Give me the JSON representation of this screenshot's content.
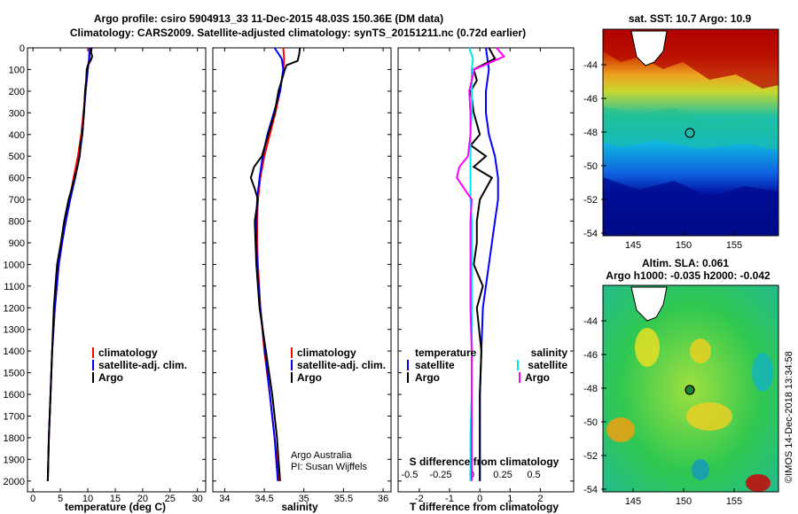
{
  "header": {
    "line1": "Argo profile: csiro 5904913_33 11-Dec-2015 48.03S 150.36E (DM data)",
    "line2": "Climatology: CARS2009. Satellite-adjusted climatology: synTS_20151211.nc (0.72d earlier)"
  },
  "colors": {
    "climatology": "#ff0000",
    "satellite": "#0000ff",
    "argo": "#000000",
    "sat_salinity": "#00e5ee",
    "argo_salinity": "#ff00ff"
  },
  "chart_data": [
    {
      "type": "line",
      "panel": "temperature",
      "xlabel": "temperature (deg C)",
      "ylabel": "",
      "xlim": [
        -1,
        31.5
      ],
      "ylim": [
        0,
        2050
      ],
      "xticks": [
        "0",
        "5",
        "10",
        "15",
        "20",
        "25",
        "30"
      ],
      "yticks": [
        "0",
        "100",
        "200",
        "300",
        "400",
        "500",
        "600",
        "700",
        "800",
        "900",
        "1000",
        "1100",
        "1200",
        "1300",
        "1400",
        "1500",
        "1600",
        "1700",
        "1800",
        "1900",
        "2000"
      ],
      "legend": [
        "climatology",
        "satellite-adj. clim.",
        "Argo"
      ],
      "series": [
        {
          "name": "climatology",
          "depth": [
            0,
            50,
            100,
            200,
            300,
            400,
            500,
            600,
            700,
            800,
            900,
            1000,
            1200,
            1400,
            1600,
            1800,
            2000
          ],
          "values": [
            10.3,
            10.2,
            10.0,
            9.6,
            9.2,
            8.8,
            8.2,
            7.4,
            6.7,
            5.9,
            5.3,
            4.7,
            4.0,
            3.5,
            3.2,
            2.9,
            2.7
          ]
        },
        {
          "name": "satellite-adj. clim.",
          "depth": [
            0,
            50,
            100,
            200,
            300,
            400,
            500,
            600,
            700,
            800,
            900,
            1000,
            1200,
            1400,
            1600,
            1800,
            2000
          ],
          "values": [
            10.4,
            10.3,
            10.0,
            9.6,
            9.3,
            9.0,
            8.5,
            7.7,
            6.8,
            6.0,
            5.3,
            4.7,
            4.0,
            3.5,
            3.2,
            2.9,
            2.7
          ]
        },
        {
          "name": "Argo",
          "depth": [
            0,
            20,
            40,
            60,
            80,
            100,
            150,
            200,
            300,
            400,
            450,
            500,
            550,
            600,
            700,
            800,
            900,
            1000,
            1100,
            1200,
            1400,
            1600,
            1800,
            2000
          ],
          "values": [
            10.7,
            10.6,
            10.8,
            10.5,
            10.0,
            9.8,
            9.7,
            9.5,
            9.3,
            9.0,
            8.6,
            8.5,
            8.1,
            7.6,
            6.5,
            5.7,
            5.1,
            4.4,
            4.1,
            3.8,
            3.5,
            3.2,
            2.9,
            2.7
          ]
        }
      ]
    },
    {
      "type": "line",
      "panel": "salinity",
      "xlabel": "salinity",
      "ylabel": "",
      "xlim": [
        33.85,
        36.1
      ],
      "ylim": [
        0,
        2050
      ],
      "xticks": [
        "34",
        "34.5",
        "35",
        "35.5",
        "36"
      ],
      "legend": [
        "climatology",
        "satellite-adj. clim.",
        "Argo"
      ],
      "annotation": [
        "Argo Australia",
        "PI: Susan Wijffels"
      ],
      "series": [
        {
          "name": "climatology",
          "depth": [
            0,
            50,
            100,
            200,
            300,
            400,
            500,
            600,
            700,
            800,
            900,
            1000,
            1200,
            1400,
            1600,
            1800,
            2000
          ],
          "values": [
            34.74,
            34.75,
            34.74,
            34.7,
            34.64,
            34.57,
            34.5,
            34.45,
            34.42,
            34.41,
            34.41,
            34.42,
            34.45,
            34.5,
            34.57,
            34.63,
            34.69
          ]
        },
        {
          "name": "satellite-adj. clim.",
          "depth": [
            0,
            50,
            100,
            200,
            300,
            400,
            500,
            600,
            700,
            800,
            900,
            1000,
            1200,
            1400,
            1600,
            1800,
            2000
          ],
          "values": [
            34.63,
            34.72,
            34.74,
            34.7,
            34.62,
            34.54,
            34.48,
            34.44,
            34.41,
            34.4,
            34.4,
            34.41,
            34.45,
            34.51,
            34.57,
            34.63,
            34.67
          ]
        },
        {
          "name": "Argo",
          "depth": [
            0,
            30,
            60,
            80,
            100,
            150,
            200,
            300,
            400,
            500,
            550,
            600,
            650,
            700,
            800,
            900,
            1000,
            1200,
            1400,
            1600,
            1800,
            1900,
            2000
          ],
          "values": [
            34.95,
            34.94,
            34.92,
            34.78,
            34.76,
            34.72,
            34.68,
            34.63,
            34.55,
            34.47,
            34.37,
            34.33,
            34.38,
            34.42,
            34.38,
            34.39,
            34.4,
            34.44,
            34.52,
            34.6,
            34.66,
            34.68,
            34.7
          ]
        }
      ]
    },
    {
      "type": "line",
      "panel": "difference",
      "xlabel": "T difference from climatology",
      "xlabel2": "S difference from climatology",
      "xlim": [
        -2.7,
        3.1
      ],
      "ylim": [
        0,
        2050
      ],
      "xticks": [
        "-2",
        "-1",
        "0",
        "1",
        "2"
      ],
      "xticks2": [
        "-0.5",
        "-0.25",
        "0",
        "0.25",
        "0.5"
      ],
      "legend": [
        "temperature",
        "satellite",
        "Argo",
        "salinity",
        "satellite",
        "Argo"
      ],
      "series": [
        {
          "name": "temperature satellite",
          "depth": [
            0,
            100,
            200,
            300,
            400,
            500,
            600,
            700,
            800,
            900,
            1000,
            1100,
            1200,
            1400,
            1600,
            1800,
            2000
          ],
          "values": [
            0.2,
            0.3,
            0.2,
            0.2,
            0.3,
            0.5,
            0.6,
            0.6,
            0.5,
            0.4,
            0.3,
            0.2,
            0.1,
            0.05,
            0.0,
            0.0,
            0.0
          ]
        },
        {
          "name": "temperature Argo",
          "depth": [
            0,
            50,
            100,
            150,
            200,
            300,
            400,
            450,
            500,
            550,
            600,
            700,
            800,
            900,
            1000,
            1100,
            1200,
            1400,
            1600,
            1800,
            2000
          ],
          "values": [
            0.3,
            0.5,
            -0.2,
            -0.1,
            -0.3,
            -0.2,
            0.0,
            -0.3,
            0.2,
            -0.2,
            0.4,
            0.0,
            -0.1,
            -0.1,
            -0.2,
            0.1,
            -0.1,
            0.05,
            0.0,
            0.0,
            0.0
          ]
        },
        {
          "name": "salinity satellite",
          "depth": [
            0,
            50,
            100,
            200,
            300,
            400,
            500,
            600,
            700,
            800,
            900,
            1000,
            1200,
            1400,
            1600,
            1800,
            2000
          ],
          "values": [
            -0.02,
            0.01,
            0.0,
            0.0,
            0.0,
            -0.01,
            -0.01,
            -0.01,
            -0.01,
            0.0,
            0.0,
            0.0,
            0.0,
            0.0,
            0.0,
            -0.01,
            -0.01
          ]
        },
        {
          "name": "salinity Argo",
          "depth": [
            0,
            40,
            60,
            80,
            100,
            200,
            300,
            400,
            500,
            550,
            600,
            650,
            700,
            800,
            900,
            1000,
            1200,
            1400,
            1600,
            1800,
            2000
          ],
          "values": [
            0.2,
            0.26,
            0.18,
            0.1,
            0.02,
            -0.02,
            -0.01,
            -0.01,
            -0.03,
            -0.1,
            -0.12,
            -0.06,
            0.0,
            -0.01,
            -0.01,
            -0.01,
            -0.01,
            0.0,
            0.0,
            0.0,
            0.0
          ]
        }
      ]
    }
  ],
  "maps": {
    "sst_title": "sat. SST: 10.7 Argo: 10.9",
    "sla_title1": "Altim. SLA: 0.061",
    "sla_title2": "Argo h1000: -0.035 h2000: -0.042",
    "lat_ticks": [
      "-44",
      "-46",
      "-48",
      "-50",
      "-52",
      "-54"
    ],
    "lon_ticks": [
      "145",
      "150",
      "155"
    ],
    "stamp": "©IMOS 14-Dec-2018 13:34:58"
  }
}
